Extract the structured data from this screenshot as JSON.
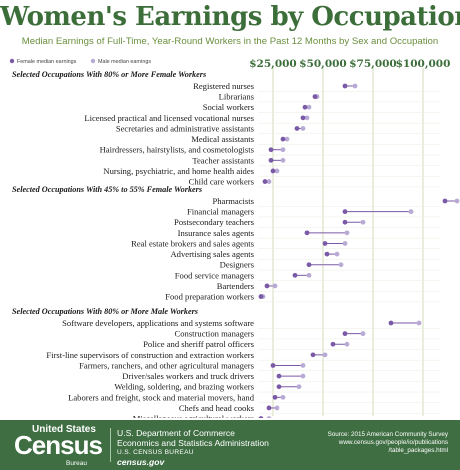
{
  "title": "Women's Earnings by Occupation",
  "subtitle": "Median Earnings of Full-Time, Year-Round Workers in the Past 12 Months by Sex and Occupation",
  "colors": {
    "female": "#7a5aa6",
    "male": "#b8aad4",
    "gridline": "#c9d6a8",
    "title": "#3c6e3a",
    "footer_bg": "#3f6e43"
  },
  "chart_data": {
    "type": "dot-plot",
    "x_ticks": [
      {
        "value": 25000,
        "label": "$25,000"
      },
      {
        "value": 50000,
        "label": "$50,000"
      },
      {
        "value": 75000,
        "label": "$75,000"
      },
      {
        "value": 100000,
        "label": "$100,000"
      }
    ],
    "xlim": [
      0,
      115000
    ],
    "legend": {
      "female_label": "Female median earnings",
      "male_label": "Male median earnings"
    },
    "sections": [
      {
        "title": "Selected Occupations With 80% or More Female Workers",
        "rows": [
          {
            "name": "Registered nurses",
            "female": 61000,
            "male": 66000
          },
          {
            "name": "Librarians",
            "female": 46000,
            "male": 47000
          },
          {
            "name": "Social workers",
            "female": 41000,
            "male": 43000
          },
          {
            "name": "Licensed practical and licensed vocational nurses",
            "female": 40000,
            "male": 42000
          },
          {
            "name": "Secretaries and administrative assistants",
            "female": 37000,
            "male": 40000
          },
          {
            "name": "Medical assistants",
            "female": 30000,
            "male": 32000
          },
          {
            "name": "Hairdressers, hairstylists, and cosmetologists",
            "female": 24000,
            "male": 30000
          },
          {
            "name": "Teacher assistants",
            "female": 24000,
            "male": 30000
          },
          {
            "name": "Nursing, psychiatric, and home health aides",
            "female": 25000,
            "male": 27000
          },
          {
            "name": "Child care workers",
            "female": 21000,
            "male": 23000
          }
        ]
      },
      {
        "title": "Selected Occupations With 45% to 55% Female Workers",
        "rows": [
          {
            "name": "Pharmacists",
            "female": 111000,
            "male": 117000
          },
          {
            "name": "Financial managers",
            "female": 61000,
            "male": 94000
          },
          {
            "name": "Postsecondary teachers",
            "female": 61000,
            "male": 70000
          },
          {
            "name": "Insurance sales agents",
            "female": 42000,
            "male": 62000
          },
          {
            "name": "Real estate brokers and sales agents",
            "female": 51000,
            "male": 61000
          },
          {
            "name": "Advertising sales agents",
            "female": 52000,
            "male": 57000
          },
          {
            "name": "Designers",
            "female": 43000,
            "male": 59000
          },
          {
            "name": "Food service managers",
            "female": 36000,
            "male": 43000
          },
          {
            "name": "Bartenders",
            "female": 22000,
            "male": 26000
          },
          {
            "name": "Food preparation workers",
            "female": 19000,
            "male": 20000
          }
        ]
      },
      {
        "title": "Selected Occupations With 80% or More Male Workers",
        "rows": [
          {
            "name": "Software developers, applications and systems software",
            "female": 84000,
            "male": 98000
          },
          {
            "name": "Construction managers",
            "female": 61000,
            "male": 70000
          },
          {
            "name": "Police and sheriff patrol officers",
            "female": 55000,
            "male": 62000
          },
          {
            "name": "First-line supervisors of construction and extraction workers",
            "female": 45000,
            "male": 51000
          },
          {
            "name": "Farmers, ranchers, and other agricultural managers",
            "female": 25000,
            "male": 40000
          },
          {
            "name": "Driver/sales workers and truck drivers",
            "female": 28000,
            "male": 40000
          },
          {
            "name": "Welding, soldering, and brazing workers",
            "female": 28000,
            "male": 38000
          },
          {
            "name": "Laborers and freight, stock and material movers, hand",
            "female": 26000,
            "male": 30000
          },
          {
            "name": "Chefs and head cooks",
            "female": 23000,
            "male": 27000
          },
          {
            "name": "Miscellaneous agricultural workers",
            "female": 19000,
            "male": 23000
          }
        ]
      }
    ]
  },
  "footer": {
    "logo_top": "United States",
    "logo_word": "Census",
    "logo_bureau": "Bureau",
    "dept_line1": "U.S. Department of Commerce",
    "dept_line2": "Economics and Statistics Administration",
    "dept_line3": "U.S. CENSUS BUREAU",
    "dept_line4": "census.gov",
    "source_line1": "Source: 2015 American Community Survey",
    "source_line2": "www.census.gov/people/io/publications",
    "source_line3": "/table_packages.html"
  }
}
